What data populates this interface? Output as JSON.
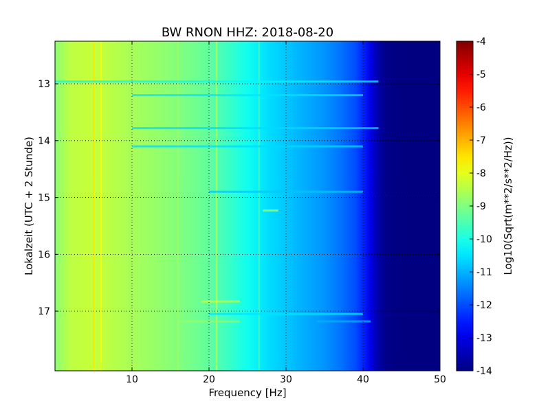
{
  "chart_data": {
    "type": "heatmap",
    "title": "BW RNON HHZ: 2018-08-20",
    "xlabel": "Frequency [Hz]",
    "ylabel": "Lokalzeit (UTC + 2 Stunde)",
    "xlim": [
      0,
      50
    ],
    "ylim": [
      12.25,
      18.05
    ],
    "y_inverted": true,
    "x_ticks": [
      "10",
      "20",
      "30",
      "40",
      "50"
    ],
    "y_ticks": [
      "13",
      "14",
      "15",
      "16",
      "17"
    ],
    "grid": true,
    "colorbar": {
      "label": "Log10(Sqrt(m**2/s**2/Hz))",
      "range": [
        -14,
        -4
      ],
      "ticks": [
        "-4",
        "-5",
        "-6",
        "-7",
        "-8",
        "-9",
        "-10",
        "-11",
        "-12",
        "-13",
        "-14"
      ],
      "colormap": "jet"
    },
    "profile": {
      "frequency_hz": [
        0,
        2,
        5,
        10,
        15,
        20,
        22,
        25,
        28,
        30,
        33,
        35,
        37,
        39,
        40,
        41,
        42,
        43,
        45,
        50
      ],
      "log10_amplitude": [
        -8.9,
        -8.4,
        -8.3,
        -8.6,
        -8.9,
        -9.3,
        -9.6,
        -10.1,
        -10.6,
        -10.8,
        -11.1,
        -11.3,
        -11.6,
        -12.0,
        -12.4,
        -13.0,
        -13.6,
        -13.9,
        -14.0,
        -14.0
      ]
    },
    "vertical_lines": [
      {
        "frequency_hz": 5,
        "log10_amplitude": -7.5
      },
      {
        "frequency_hz": 6,
        "log10_amplitude": -7.8
      },
      {
        "frequency_hz": 10,
        "log10_amplitude": -8.6
      },
      {
        "frequency_hz": 16,
        "log10_amplitude": -8.6
      },
      {
        "frequency_hz": 21,
        "log10_amplitude": -8.3
      },
      {
        "frequency_hz": 26.5,
        "log10_amplitude": -9.6
      }
    ],
    "horizontal_bands": [
      {
        "time": 12.96,
        "from_hz": 0,
        "to_hz": 42,
        "log10_amplitude": -10.3
      },
      {
        "time": 13.2,
        "from_hz": 10,
        "to_hz": 40,
        "log10_amplitude": -10.5
      },
      {
        "time": 13.78,
        "from_hz": 10,
        "to_hz": 42,
        "log10_amplitude": -10.6
      },
      {
        "time": 14.1,
        "from_hz": 10,
        "to_hz": 40,
        "log10_amplitude": -10.6
      },
      {
        "time": 14.9,
        "from_hz": 20,
        "to_hz": 40,
        "log10_amplitude": -10.8
      },
      {
        "time": 15.23,
        "from_hz": 27,
        "to_hz": 29,
        "log10_amplitude": -8.5
      },
      {
        "time": 16.83,
        "from_hz": 19,
        "to_hz": 24,
        "log10_amplitude": -8.2
      },
      {
        "time": 17.05,
        "from_hz": 20,
        "to_hz": 40,
        "log10_amplitude": -10.5
      },
      {
        "time": 17.18,
        "from_hz": 16,
        "to_hz": 24,
        "log10_amplitude": -8.8
      },
      {
        "time": 17.18,
        "from_hz": 34,
        "to_hz": 41,
        "log10_amplitude": -11.0
      }
    ]
  }
}
